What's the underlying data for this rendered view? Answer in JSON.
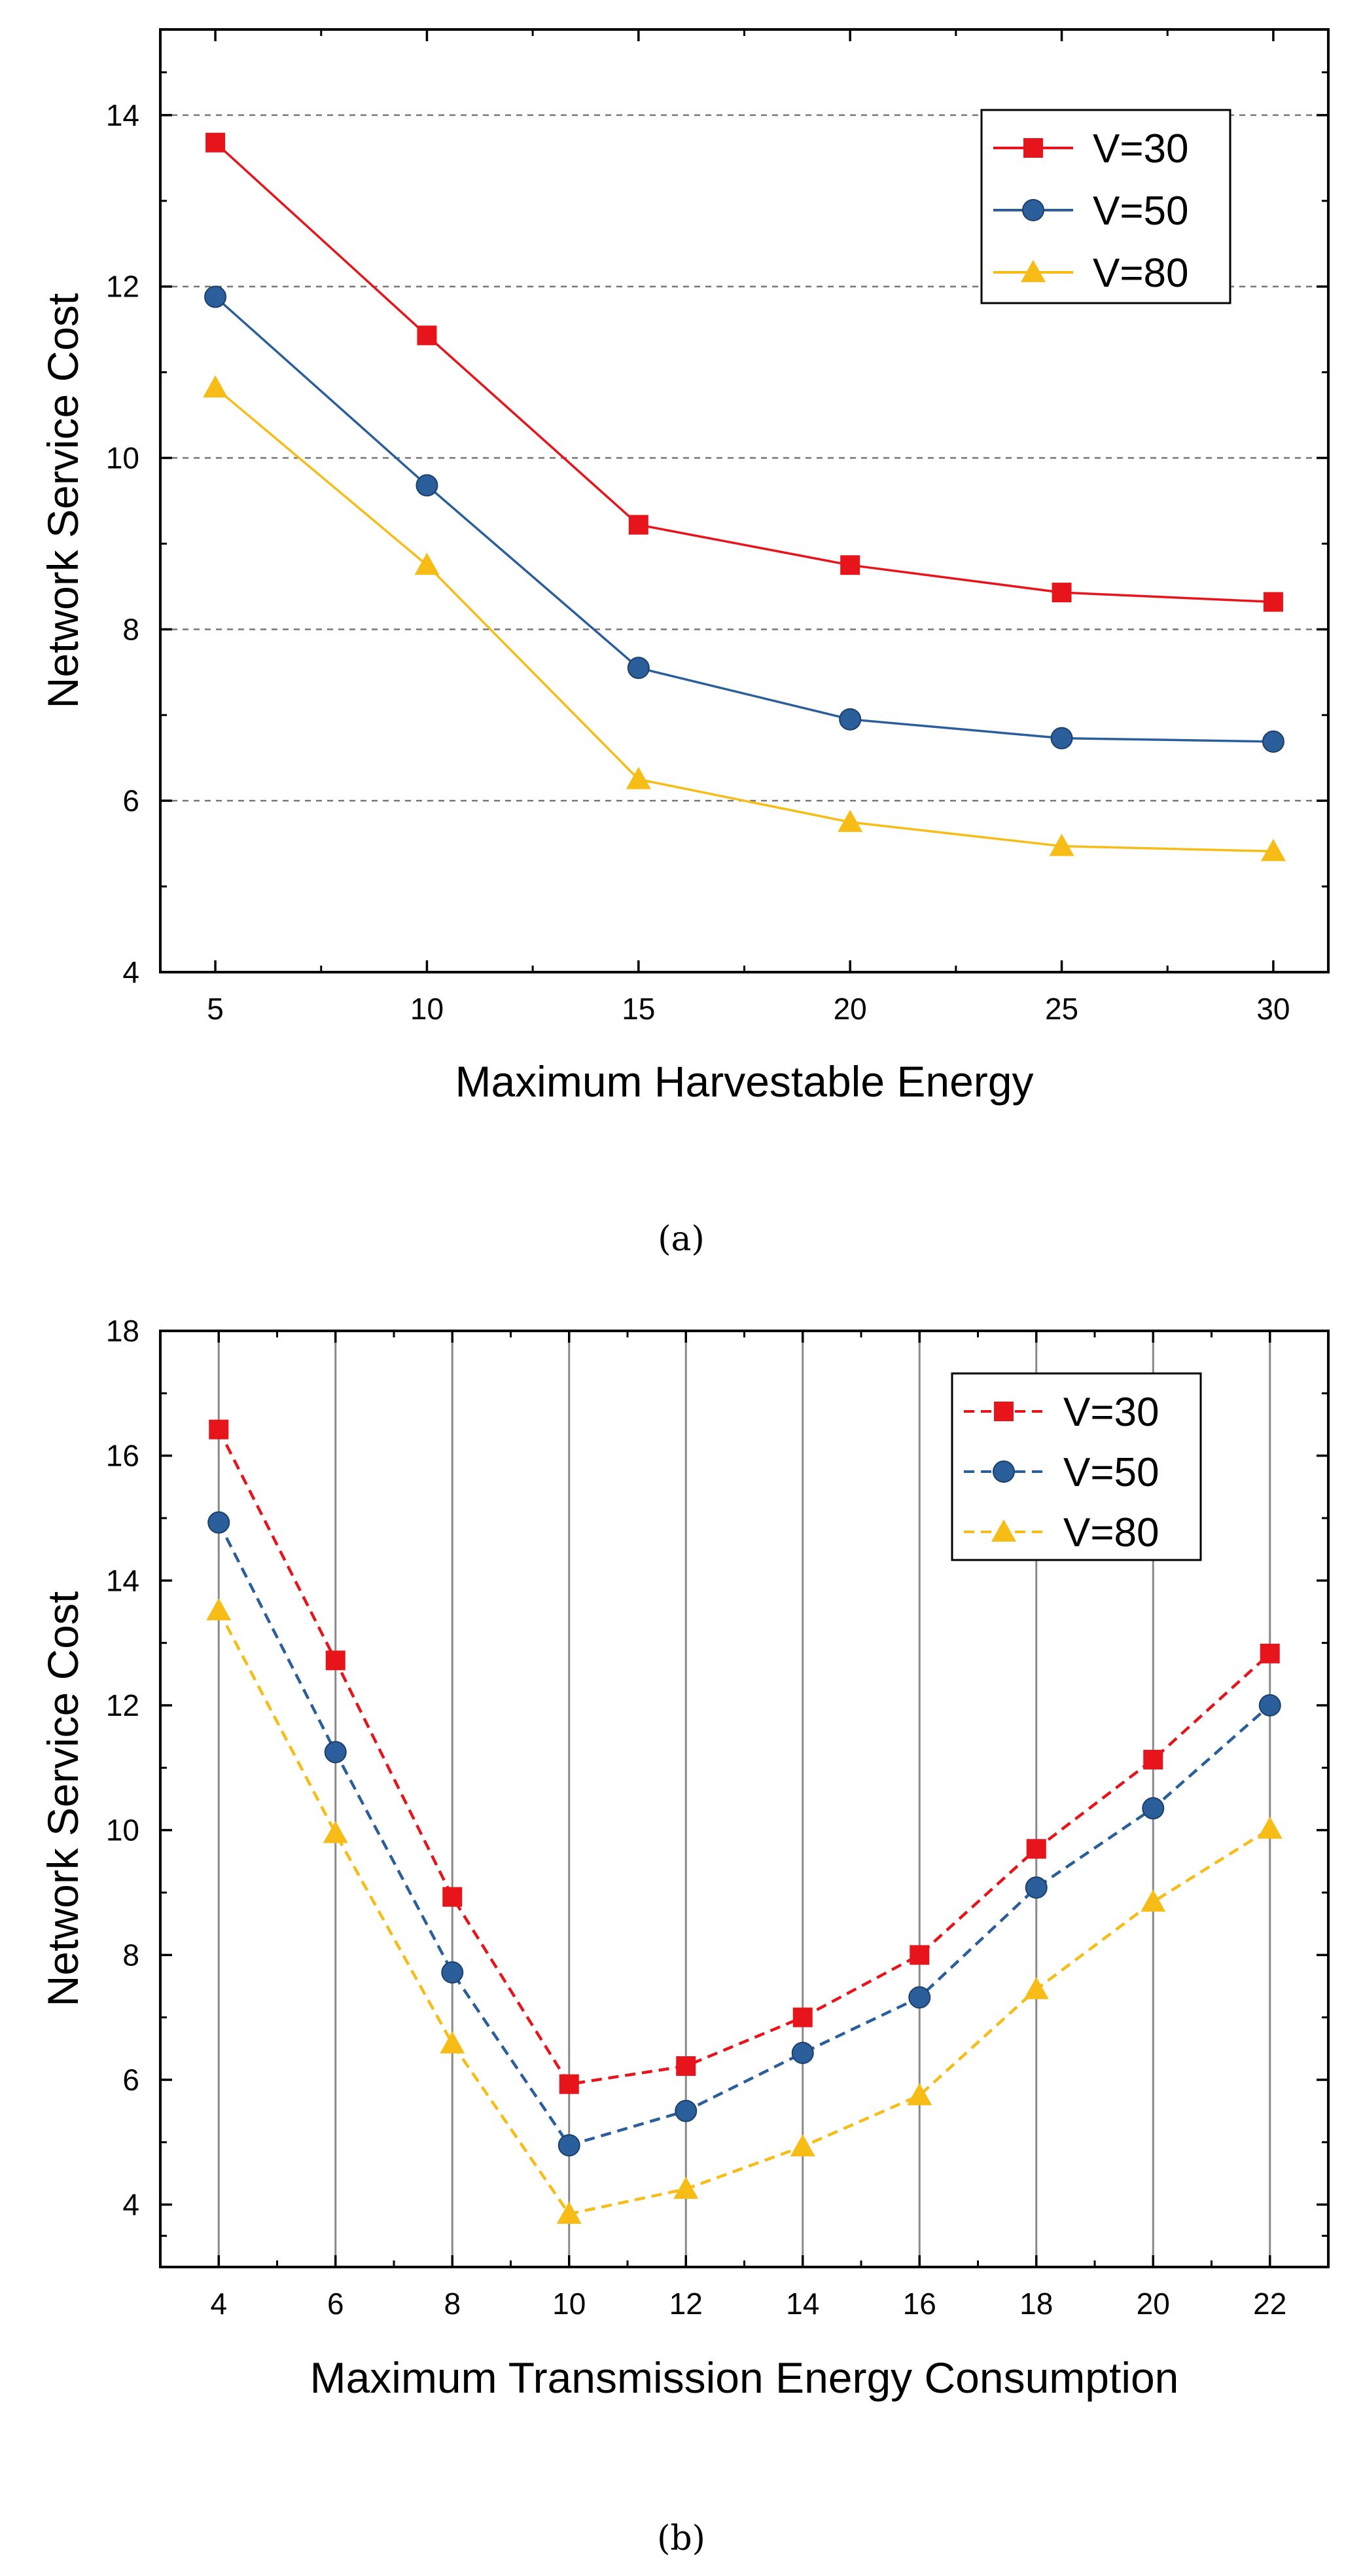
{
  "colors": {
    "v30": "#e8141b",
    "v50": "#2b5f9b",
    "v80": "#f7bd16",
    "grid": "#777777",
    "axis": "#000000"
  },
  "chart_data": [
    {
      "type": "line",
      "panel": "a",
      "caption": "(a)",
      "xlabel": "Maximum Harvestable Energy",
      "ylabel": "Network Service Cost",
      "xlim": [
        3.7,
        31.3
      ],
      "ylim": [
        4,
        15
      ],
      "xticks": [
        5,
        10,
        15,
        20,
        25,
        30
      ],
      "yticks": [
        4,
        6,
        8,
        10,
        12,
        14
      ],
      "grid": "horizontal dashed",
      "x": [
        5,
        10,
        15,
        20,
        25,
        30
      ],
      "series": [
        {
          "name": "V=30",
          "marker": "square",
          "color": "#e8141b",
          "dash": "solid",
          "values": [
            13.68,
            11.43,
            9.22,
            8.75,
            8.43,
            8.32
          ]
        },
        {
          "name": "V=50",
          "marker": "circle",
          "color": "#2b5f9b",
          "dash": "solid",
          "values": [
            11.88,
            9.68,
            7.55,
            6.95,
            6.73,
            6.69
          ]
        },
        {
          "name": "V=80",
          "marker": "triangle",
          "color": "#f7bd16",
          "dash": "solid",
          "values": [
            10.82,
            8.75,
            6.25,
            5.75,
            5.47,
            5.41
          ]
        }
      ],
      "legend": "top-right"
    },
    {
      "type": "line",
      "panel": "b",
      "caption": "(b)",
      "xlabel": "Maximum Transmission Energy Consumption",
      "ylabel": "Network Service Cost",
      "xlim": [
        3,
        23
      ],
      "ylim": [
        3,
        18
      ],
      "xticks": [
        4,
        6,
        8,
        10,
        12,
        14,
        16,
        18,
        20,
        22
      ],
      "yticks": [
        4,
        6,
        8,
        10,
        12,
        14,
        16,
        18
      ],
      "grid": "vertical solid",
      "x": [
        4,
        6,
        8,
        10,
        12,
        14,
        16,
        18,
        20,
        22
      ],
      "series": [
        {
          "name": "V=30",
          "marker": "square",
          "color": "#e8141b",
          "dash": "dashed",
          "values": [
            16.42,
            12.72,
            8.93,
            5.93,
            6.22,
            7.0,
            8.0,
            9.7,
            11.13,
            12.83
          ]
        },
        {
          "name": "V=50",
          "marker": "circle",
          "color": "#2b5f9b",
          "dash": "dashed",
          "values": [
            14.93,
            11.25,
            7.72,
            4.95,
            5.5,
            6.43,
            7.32,
            9.08,
            10.35,
            12.0
          ]
        },
        {
          "name": "V=80",
          "marker": "triangle",
          "color": "#f7bd16",
          "dash": "dashed",
          "values": [
            13.52,
            9.95,
            6.58,
            3.85,
            4.25,
            4.93,
            5.75,
            7.45,
            8.85,
            10.02
          ]
        }
      ],
      "legend": "top-right"
    }
  ]
}
